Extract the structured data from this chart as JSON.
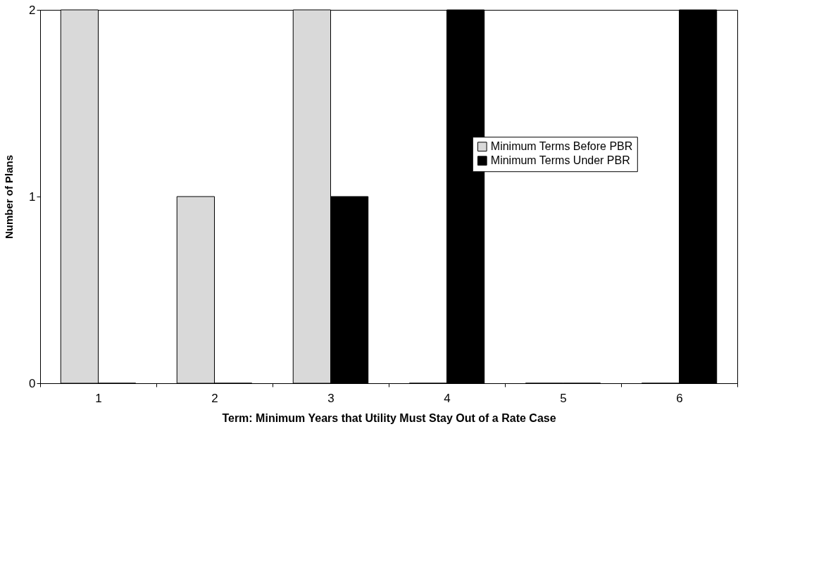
{
  "chart_data": {
    "type": "bar",
    "xlabel": "Term: Minimum Years that Utility Must Stay Out of a Rate Case",
    "ylabel": "Number of Plans",
    "categories": [
      "1",
      "2",
      "3",
      "4",
      "5",
      "6"
    ],
    "series": [
      {
        "name": "Minimum Terms Before PBR",
        "color": "#d9d9d9",
        "values": [
          2,
          1,
          2,
          0,
          0,
          0
        ]
      },
      {
        "name": "Minimum Terms Under PBR",
        "color": "#000000",
        "values": [
          0,
          0,
          1,
          2,
          0,
          2
        ]
      }
    ],
    "ylim": [
      0,
      2
    ],
    "yticks": [
      0,
      1,
      2
    ],
    "grid": false,
    "legend": "right"
  }
}
